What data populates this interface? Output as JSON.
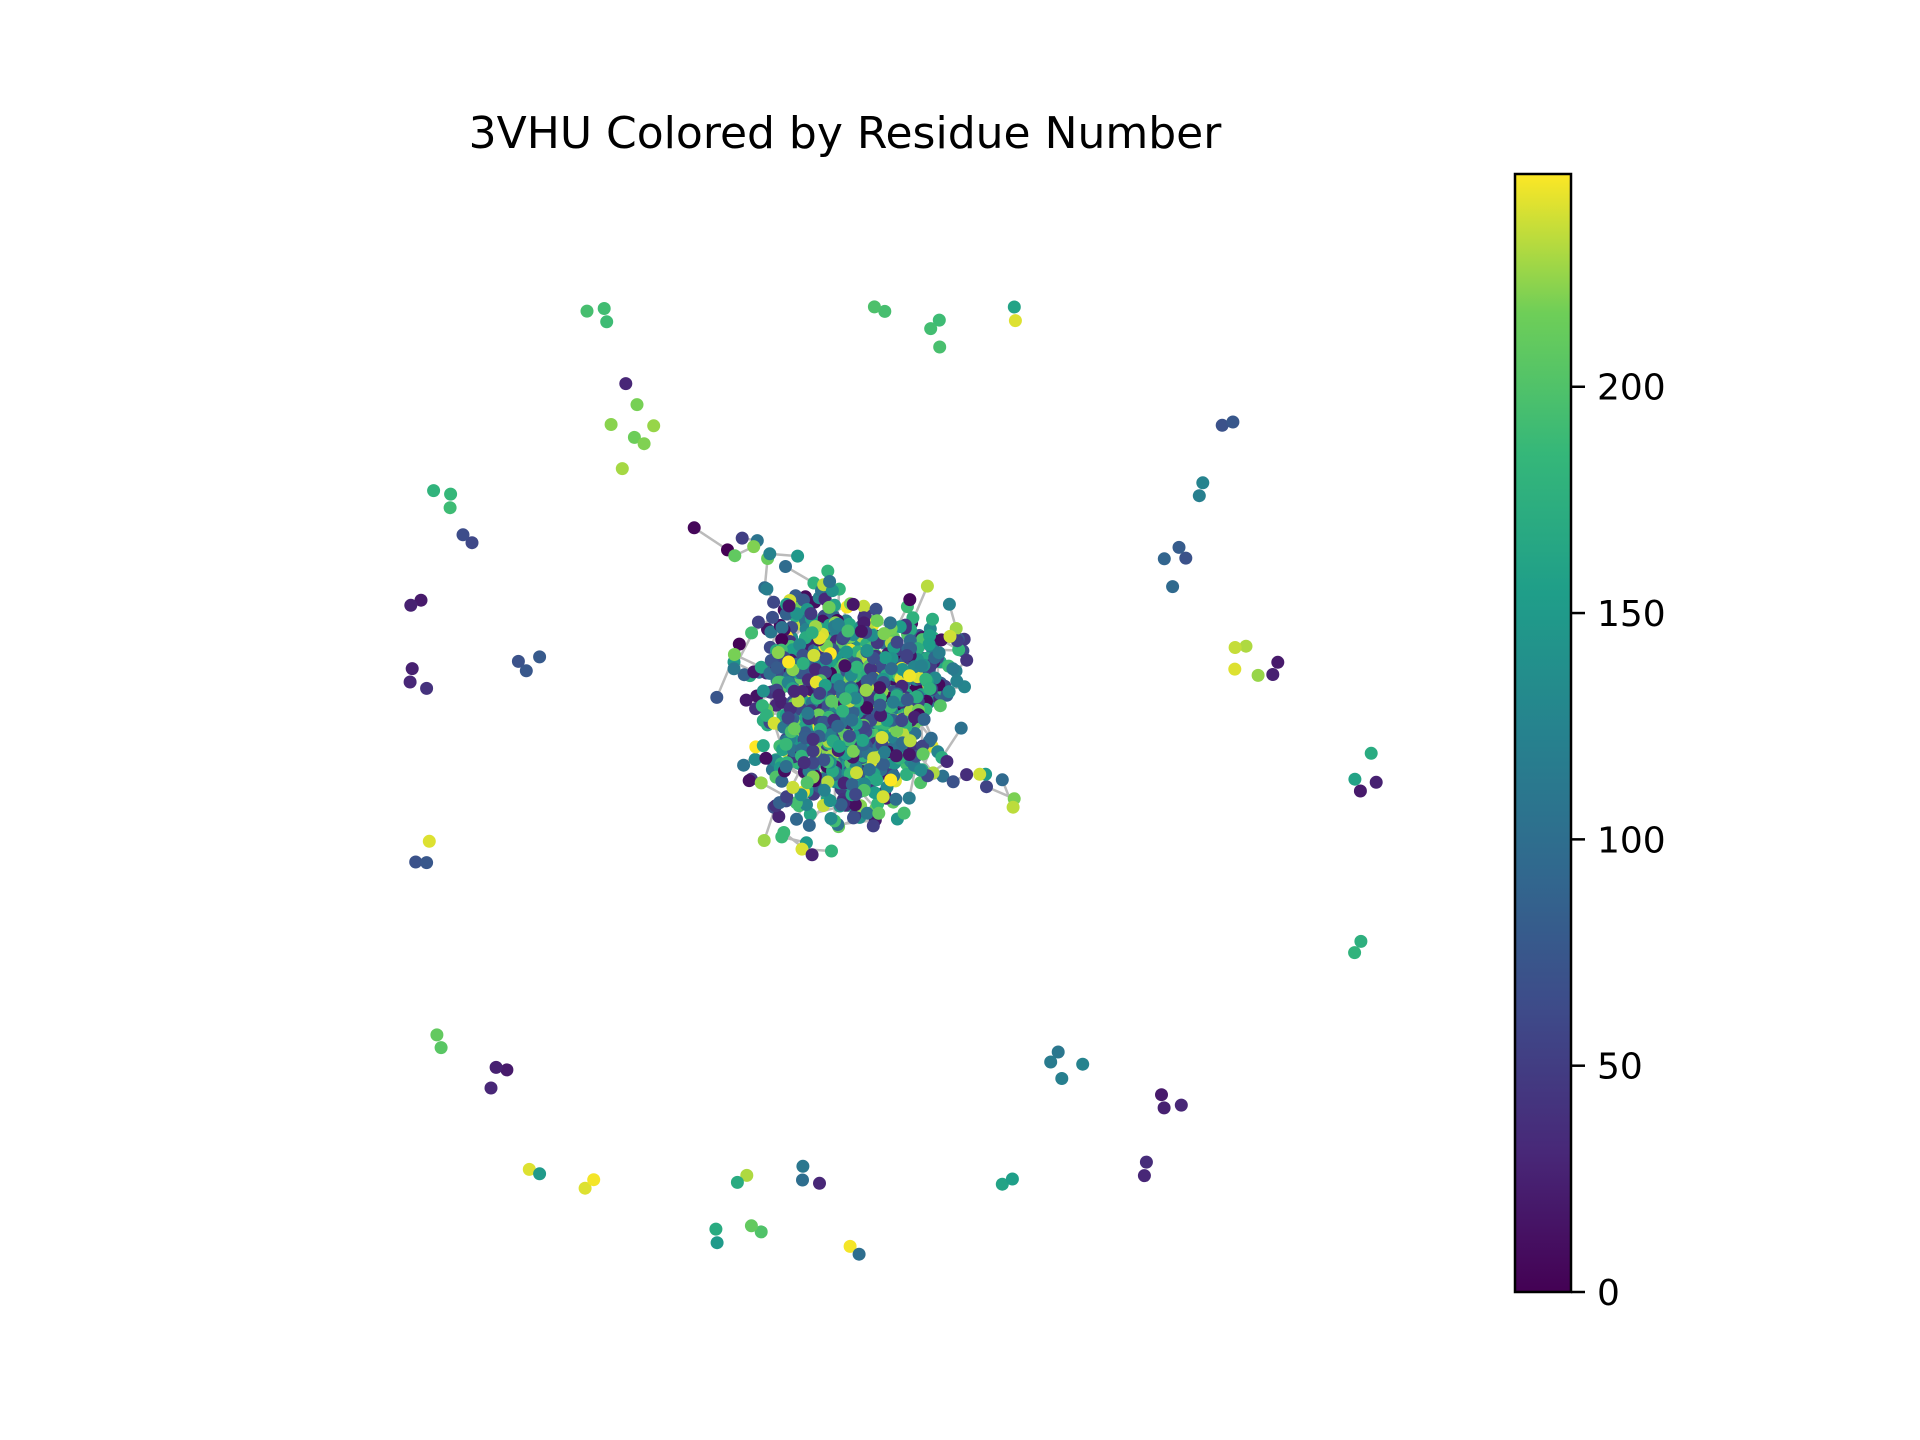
{
  "chart_data": {
    "type": "scatter",
    "subtype": "network-graph",
    "title": "3VHU Colored by Residue Number",
    "axes_visible": false,
    "grid": false,
    "node_color_map": "viridis",
    "edge_color": "#bbbbbb",
    "colorbar": {
      "vmin": 0,
      "vmax": 247,
      "ticks": [
        0,
        50,
        100,
        150,
        200
      ],
      "tick_labels": [
        "0",
        "50",
        "100",
        "150",
        "200"
      ],
      "placement": "right"
    },
    "colors": {
      "viridis_0": "#440154",
      "viridis_25": "#3b528b",
      "viridis_50": "#21918c",
      "viridis_75": "#5ec962",
      "viridis_100": "#fde725"
    },
    "x_range": [
      -1.0,
      1.0
    ],
    "y_range": [
      -1.0,
      1.0
    ],
    "peripheral_groups": [
      {
        "x": -0.53,
        "y": 0.92,
        "values": [
          190,
          192,
          195
        ]
      },
      {
        "x": 0.08,
        "y": 0.93,
        "values": [
          195,
          198
        ]
      },
      {
        "x": 0.21,
        "y": 0.91,
        "values": [
          190,
          193,
          196
        ]
      },
      {
        "x": 0.38,
        "y": 0.95,
        "values": [
          160,
          240
        ]
      },
      {
        "x": -0.45,
        "y": 0.68,
        "values": [
          215,
          220,
          225,
          218,
          222,
          228
        ]
      },
      {
        "x": -0.48,
        "y": 0.8,
        "values": [
          30
        ]
      },
      {
        "x": -0.87,
        "y": 0.52,
        "values": [
          190,
          185,
          180
        ]
      },
      {
        "x": -0.82,
        "y": 0.43,
        "values": [
          60,
          65
        ]
      },
      {
        "x": -0.92,
        "y": 0.3,
        "values": [
          20,
          25
        ]
      },
      {
        "x": -0.93,
        "y": 0.16,
        "values": [
          25,
          30,
          40
        ]
      },
      {
        "x": -0.7,
        "y": 0.19,
        "values": [
          70,
          75,
          78
        ]
      },
      {
        "x": 0.82,
        "y": 0.71,
        "values": [
          70,
          75
        ]
      },
      {
        "x": 0.76,
        "y": 0.55,
        "values": [
          120,
          125
        ]
      },
      {
        "x": 0.73,
        "y": 0.4,
        "values": [
          70,
          80,
          90,
          95
        ]
      },
      {
        "x": 0.87,
        "y": 0.2,
        "values": [
          230,
          235,
          240,
          225
        ]
      },
      {
        "x": 0.95,
        "y": 0.17,
        "values": [
          20,
          25
        ]
      },
      {
        "x": 1.12,
        "y": -0.07,
        "values": [
          160,
          20,
          25,
          170
        ]
      },
      {
        "x": -0.93,
        "y": -0.24,
        "values": [
          70,
          75,
          240
        ]
      },
      {
        "x": 1.1,
        "y": -0.44,
        "values": [
          180,
          175
        ]
      },
      {
        "x": -0.89,
        "y": -0.66,
        "values": [
          205,
          210
        ]
      },
      {
        "x": -0.74,
        "y": -0.72,
        "values": [
          20,
          25,
          30
        ]
      },
      {
        "x": 0.47,
        "y": -0.68,
        "values": [
          110,
          115,
          120,
          125
        ]
      },
      {
        "x": 0.7,
        "y": -0.76,
        "values": [
          20,
          25,
          30
        ]
      },
      {
        "x": -0.68,
        "y": -0.91,
        "values": [
          240,
          150
        ]
      },
      {
        "x": -0.57,
        "y": -0.95,
        "values": [
          240,
          245
        ]
      },
      {
        "x": -0.29,
        "y": -1.08,
        "values": [
          150,
          170
        ]
      },
      {
        "x": -0.19,
        "y": -1.07,
        "values": [
          200,
          210
        ]
      },
      {
        "x": -0.21,
        "y": -0.95,
        "values": [
          230,
          170
        ]
      },
      {
        "x": -0.08,
        "y": -0.92,
        "values": [
          110,
          100,
          30
        ]
      },
      {
        "x": 0.02,
        "y": -1.08,
        "values": [
          245,
          100
        ]
      },
      {
        "x": 0.34,
        "y": -0.94,
        "values": [
          160,
          155
        ]
      },
      {
        "x": 0.64,
        "y": -0.93,
        "values": [
          30,
          35
        ]
      }
    ]
  }
}
